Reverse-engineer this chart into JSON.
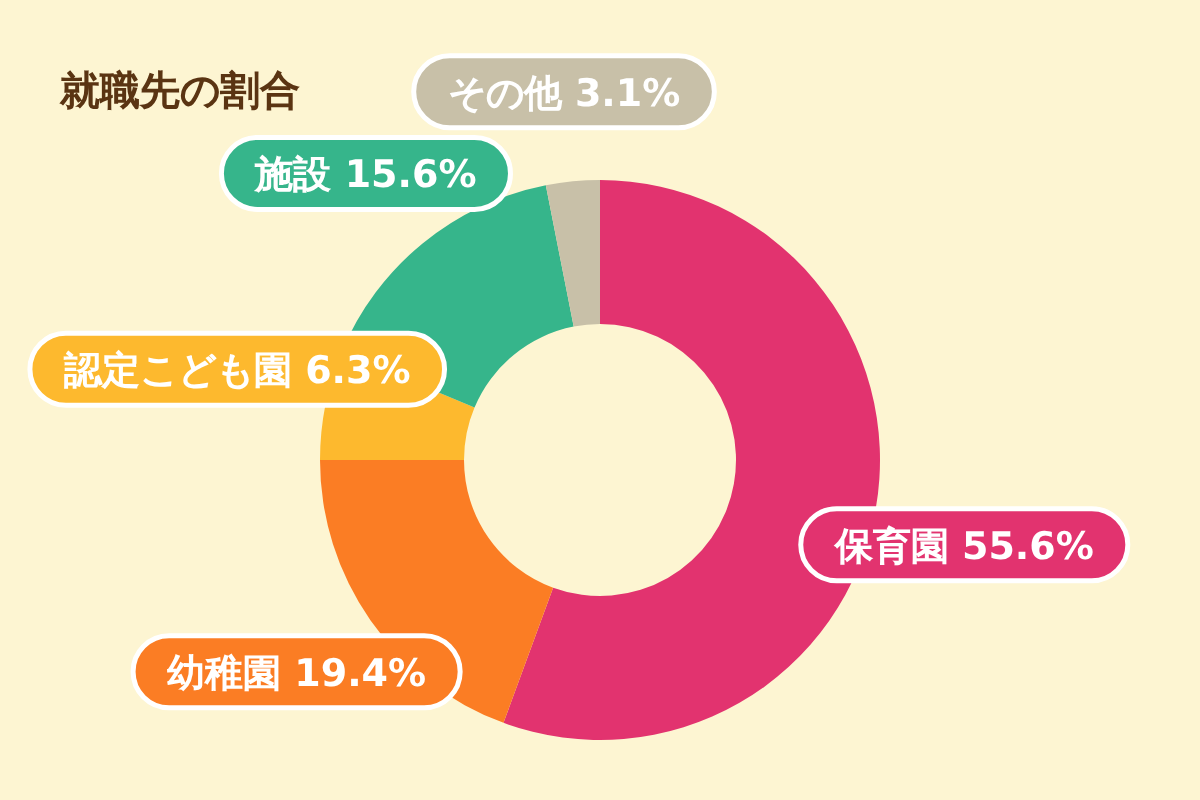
{
  "chart_data": {
    "type": "donut",
    "title": "就職先の割合",
    "categories": [
      "保育園",
      "幼稚園",
      "認定こども園",
      "施設",
      "その他"
    ],
    "values": [
      55.6,
      19.4,
      6.3,
      15.6,
      3.1
    ],
    "colors": [
      "#e2336f",
      "#fb7d24",
      "#fdb92e",
      "#36b58b",
      "#c8c0a8"
    ],
    "value_labels": [
      "55.6%",
      "19.4%",
      "6.3%",
      "15.6%",
      "3.1%"
    ]
  }
}
